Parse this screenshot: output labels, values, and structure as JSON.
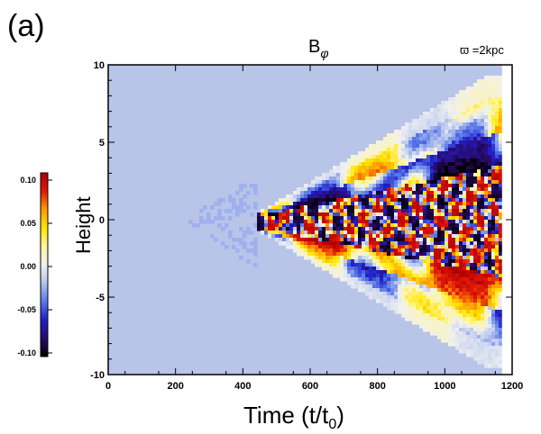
{
  "panel_label": "(a)",
  "chart_data": {
    "type": "heatmap",
    "title": "B",
    "title_subscript": "φ",
    "annotation": "ϖ =2kpc",
    "xlabel": "Time (t/t",
    "xlabel_subscript": "0",
    "xlabel_suffix": ")",
    "ylabel": "Height",
    "xlim": [
      0,
      1200
    ],
    "ylim": [
      -10,
      10
    ],
    "xticks": [
      0,
      200,
      400,
      600,
      800,
      1000,
      1200
    ],
    "yticks": [
      -10,
      -5,
      0,
      5,
      10
    ],
    "colorbar": {
      "range": [
        -0.1,
        0.1
      ],
      "ticks": [
        "0.10",
        "0.05",
        "0.00",
        "-0.05",
        "-0.10"
      ],
      "colors": [
        "#000000",
        "#2a0a6a",
        "#2020c8",
        "#5a78e8",
        "#b4c4ee",
        "#f0f0f0",
        "#fff6a0",
        "#ffe400",
        "#ff9c00",
        "#e01808",
        "#b00000"
      ]
    },
    "background_color": "#b8c4e8",
    "grid": false,
    "onset_time": 440,
    "data_end_time": 1170
  }
}
